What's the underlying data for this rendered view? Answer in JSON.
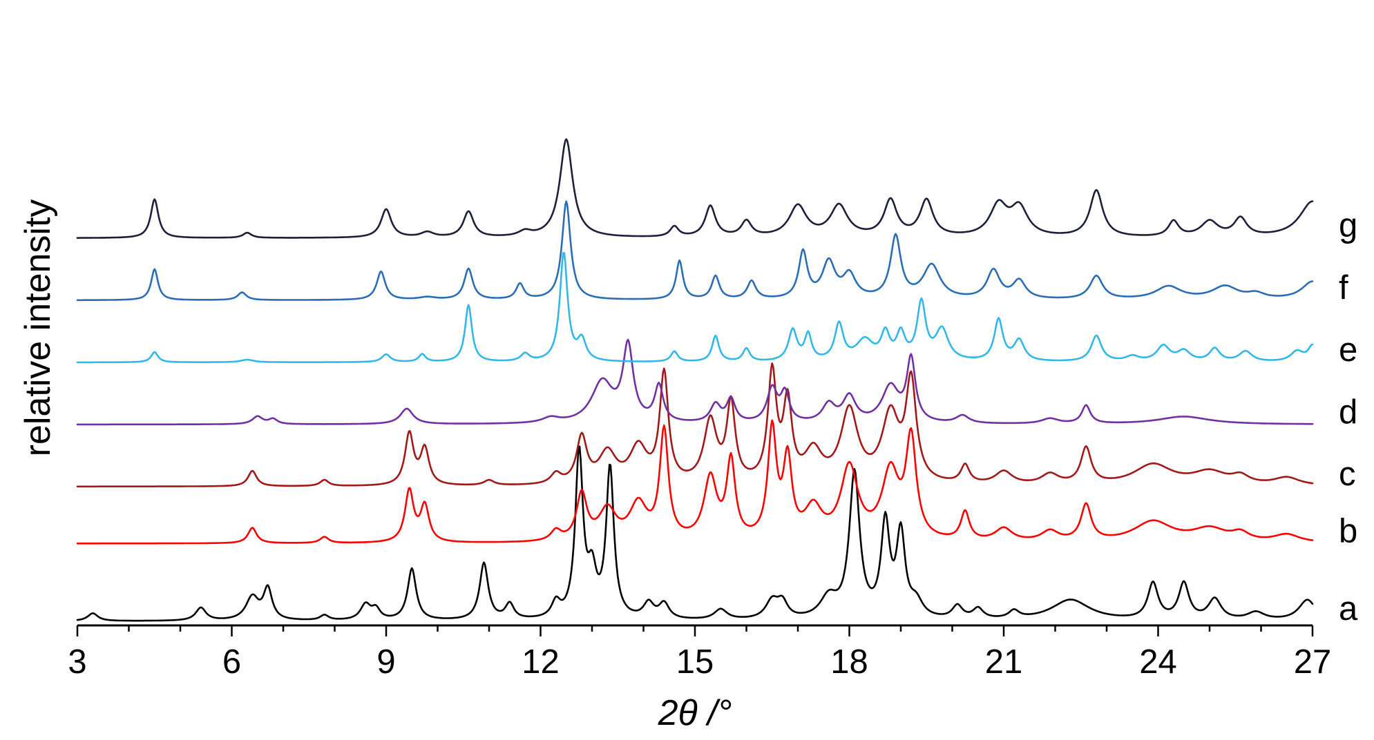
{
  "chart_data": {
    "type": "line",
    "title": "",
    "xlabel": "2θ /°",
    "ylabel": "relative intensity",
    "xlim": [
      3,
      27
    ],
    "xticks": [
      "3",
      "6",
      "9",
      "12",
      "15",
      "18",
      "21",
      "24",
      "27"
    ],
    "x_minor_step": 1,
    "y_ticks_shown": false,
    "grid": false,
    "legend": "none; each trace labeled at right end",
    "series": [
      {
        "name": "a",
        "color": "#000000",
        "offset": 0,
        "peaks": [
          [
            3.3,
            0.15,
            0.12
          ],
          [
            5.4,
            0.25,
            0.12
          ],
          [
            6.4,
            0.45,
            0.15
          ],
          [
            6.7,
            0.6,
            0.1
          ],
          [
            7.8,
            0.1,
            0.1
          ],
          [
            8.6,
            0.3,
            0.12
          ],
          [
            8.8,
            0.2,
            0.1
          ],
          [
            9.5,
            1.0,
            0.1
          ],
          [
            10.9,
            1.1,
            0.1
          ],
          [
            11.4,
            0.3,
            0.1
          ],
          [
            12.3,
            0.3,
            0.1
          ],
          [
            12.75,
            3.2,
            0.09
          ],
          [
            13.35,
            2.9,
            0.09
          ],
          [
            13.0,
            0.8,
            0.1
          ],
          [
            14.1,
            0.3,
            0.12
          ],
          [
            14.4,
            0.3,
            0.12
          ],
          [
            15.5,
            0.2,
            0.15
          ],
          [
            16.5,
            0.35,
            0.15
          ],
          [
            16.7,
            0.3,
            0.12
          ],
          [
            17.6,
            0.4,
            0.2
          ],
          [
            18.1,
            2.8,
            0.12
          ],
          [
            18.7,
            1.8,
            0.1
          ],
          [
            19.0,
            1.6,
            0.1
          ],
          [
            19.3,
            0.3,
            0.15
          ],
          [
            20.1,
            0.25,
            0.12
          ],
          [
            20.5,
            0.2,
            0.12
          ],
          [
            21.2,
            0.15,
            0.12
          ],
          [
            22.3,
            0.4,
            0.45
          ],
          [
            23.9,
            0.7,
            0.12
          ],
          [
            24.5,
            0.7,
            0.12
          ],
          [
            25.1,
            0.4,
            0.15
          ],
          [
            25.9,
            0.15,
            0.2
          ],
          [
            26.9,
            0.4,
            0.2
          ]
        ]
      },
      {
        "name": "b",
        "color": "#ff0000",
        "offset": 1.5,
        "peaks": [
          [
            6.4,
            0.3,
            0.1
          ],
          [
            7.8,
            0.12,
            0.1
          ],
          [
            9.45,
            1.0,
            0.1
          ],
          [
            9.75,
            0.7,
            0.1
          ],
          [
            12.3,
            0.2,
            0.12
          ],
          [
            12.8,
            0.9,
            0.12
          ],
          [
            13.3,
            0.6,
            0.2
          ],
          [
            13.9,
            0.7,
            0.2
          ],
          [
            14.4,
            2.1,
            0.1
          ],
          [
            15.3,
            1.2,
            0.15
          ],
          [
            15.7,
            1.5,
            0.1
          ],
          [
            16.5,
            2.1,
            0.1
          ],
          [
            16.8,
            1.5,
            0.1
          ],
          [
            17.3,
            0.6,
            0.2
          ],
          [
            18.0,
            1.4,
            0.2
          ],
          [
            18.8,
            1.3,
            0.2
          ],
          [
            19.2,
            1.9,
            0.12
          ],
          [
            20.25,
            0.55,
            0.1
          ],
          [
            21.0,
            0.25,
            0.2
          ],
          [
            21.9,
            0.2,
            0.2
          ],
          [
            22.6,
            0.7,
            0.12
          ],
          [
            23.9,
            0.4,
            0.45
          ],
          [
            25.0,
            0.25,
            0.4
          ],
          [
            25.6,
            0.15,
            0.2
          ],
          [
            26.5,
            0.15,
            0.3
          ]
        ]
      },
      {
        "name": "c",
        "color": "#a01818",
        "offset": 2.6,
        "peaks": [
          [
            6.4,
            0.3,
            0.1
          ],
          [
            7.8,
            0.12,
            0.1
          ],
          [
            9.45,
            1.0,
            0.1
          ],
          [
            9.75,
            0.7,
            0.1
          ],
          [
            11.0,
            0.1,
            0.12
          ],
          [
            12.3,
            0.2,
            0.12
          ],
          [
            12.8,
            0.9,
            0.12
          ],
          [
            13.3,
            0.6,
            0.2
          ],
          [
            13.9,
            0.7,
            0.2
          ],
          [
            14.4,
            2.1,
            0.1
          ],
          [
            15.3,
            1.2,
            0.15
          ],
          [
            15.7,
            1.5,
            0.1
          ],
          [
            16.5,
            2.1,
            0.1
          ],
          [
            16.8,
            1.5,
            0.1
          ],
          [
            17.3,
            0.6,
            0.2
          ],
          [
            18.0,
            1.4,
            0.2
          ],
          [
            18.8,
            1.3,
            0.2
          ],
          [
            19.2,
            1.9,
            0.12
          ],
          [
            20.25,
            0.35,
            0.1
          ],
          [
            21.0,
            0.25,
            0.2
          ],
          [
            21.9,
            0.2,
            0.2
          ],
          [
            22.6,
            0.7,
            0.12
          ],
          [
            23.9,
            0.4,
            0.45
          ],
          [
            25.0,
            0.25,
            0.4
          ],
          [
            25.6,
            0.15,
            0.2
          ],
          [
            26.5,
            0.15,
            0.3
          ]
        ]
      },
      {
        "name": "d",
        "color": "#7030a0",
        "offset": 3.8,
        "peaks": [
          [
            6.5,
            0.15,
            0.12
          ],
          [
            6.8,
            0.1,
            0.1
          ],
          [
            9.4,
            0.3,
            0.15
          ],
          [
            12.2,
            0.1,
            0.2
          ],
          [
            13.2,
            0.8,
            0.25
          ],
          [
            13.7,
            1.45,
            0.12
          ],
          [
            14.3,
            0.7,
            0.1
          ],
          [
            15.4,
            0.35,
            0.12
          ],
          [
            15.7,
            0.45,
            0.1
          ],
          [
            16.5,
            0.65,
            0.12
          ],
          [
            16.75,
            0.55,
            0.1
          ],
          [
            17.6,
            0.35,
            0.15
          ],
          [
            18.0,
            0.5,
            0.15
          ],
          [
            18.8,
            0.7,
            0.2
          ],
          [
            19.2,
            1.2,
            0.1
          ],
          [
            20.2,
            0.15,
            0.15
          ],
          [
            21.9,
            0.1,
            0.2
          ],
          [
            22.6,
            0.35,
            0.1
          ],
          [
            24.5,
            0.15,
            0.6
          ]
        ]
      },
      {
        "name": "e",
        "color": "#33b6e8",
        "offset": 5.0,
        "peaks": [
          [
            4.5,
            0.2,
            0.08
          ],
          [
            6.3,
            0.05,
            0.15
          ],
          [
            9.0,
            0.15,
            0.1
          ],
          [
            9.7,
            0.15,
            0.08
          ],
          [
            10.6,
            1.1,
            0.08
          ],
          [
            11.7,
            0.15,
            0.1
          ],
          [
            12.45,
            2.1,
            0.09
          ],
          [
            12.8,
            0.4,
            0.1
          ],
          [
            14.6,
            0.2,
            0.08
          ],
          [
            15.4,
            0.5,
            0.08
          ],
          [
            16.0,
            0.25,
            0.08
          ],
          [
            16.9,
            0.6,
            0.1
          ],
          [
            17.2,
            0.5,
            0.08
          ],
          [
            17.8,
            0.7,
            0.1
          ],
          [
            18.3,
            0.4,
            0.2
          ],
          [
            18.7,
            0.5,
            0.1
          ],
          [
            19.0,
            0.5,
            0.1
          ],
          [
            19.4,
            1.1,
            0.1
          ],
          [
            19.8,
            0.6,
            0.15
          ],
          [
            20.9,
            0.8,
            0.1
          ],
          [
            21.3,
            0.4,
            0.12
          ],
          [
            22.8,
            0.5,
            0.12
          ],
          [
            23.5,
            0.1,
            0.15
          ],
          [
            24.1,
            0.3,
            0.15
          ],
          [
            24.5,
            0.2,
            0.15
          ],
          [
            25.1,
            0.25,
            0.12
          ],
          [
            25.7,
            0.2,
            0.15
          ],
          [
            26.7,
            0.2,
            0.15
          ],
          [
            27.0,
            0.3,
            0.1
          ]
        ]
      },
      {
        "name": "f",
        "color": "#2a6db3",
        "offset": 6.2,
        "peaks": [
          [
            4.5,
            0.6,
            0.08
          ],
          [
            6.2,
            0.15,
            0.1
          ],
          [
            8.9,
            0.55,
            0.1
          ],
          [
            9.8,
            0.05,
            0.2
          ],
          [
            10.6,
            0.6,
            0.1
          ],
          [
            11.6,
            0.3,
            0.09
          ],
          [
            12.5,
            1.9,
            0.1
          ],
          [
            14.7,
            0.75,
            0.08
          ],
          [
            15.4,
            0.45,
            0.09
          ],
          [
            16.1,
            0.35,
            0.1
          ],
          [
            17.1,
            0.9,
            0.1
          ],
          [
            17.6,
            0.7,
            0.15
          ],
          [
            18.0,
            0.45,
            0.15
          ],
          [
            18.9,
            1.2,
            0.12
          ],
          [
            19.6,
            0.65,
            0.2
          ],
          [
            20.8,
            0.55,
            0.15
          ],
          [
            21.3,
            0.35,
            0.15
          ],
          [
            22.8,
            0.45,
            0.15
          ],
          [
            24.2,
            0.25,
            0.3
          ],
          [
            25.3,
            0.25,
            0.3
          ],
          [
            25.9,
            0.1,
            0.2
          ],
          [
            27.0,
            0.35,
            0.25
          ]
        ]
      },
      {
        "name": "g",
        "color": "#1c1f3a",
        "offset": 7.4,
        "peaks": [
          [
            4.5,
            0.75,
            0.09
          ],
          [
            6.3,
            0.1,
            0.1
          ],
          [
            9.0,
            0.55,
            0.12
          ],
          [
            9.8,
            0.1,
            0.15
          ],
          [
            10.6,
            0.5,
            0.12
          ],
          [
            11.7,
            0.1,
            0.15
          ],
          [
            12.5,
            1.9,
            0.15
          ],
          [
            14.6,
            0.2,
            0.1
          ],
          [
            15.3,
            0.6,
            0.12
          ],
          [
            16.0,
            0.3,
            0.12
          ],
          [
            17.0,
            0.6,
            0.2
          ],
          [
            17.8,
            0.6,
            0.2
          ],
          [
            18.8,
            0.7,
            0.15
          ],
          [
            19.5,
            0.7,
            0.15
          ],
          [
            20.9,
            0.6,
            0.2
          ],
          [
            21.3,
            0.55,
            0.2
          ],
          [
            22.8,
            0.9,
            0.15
          ],
          [
            24.3,
            0.3,
            0.12
          ],
          [
            25.0,
            0.3,
            0.2
          ],
          [
            25.6,
            0.35,
            0.15
          ],
          [
            27.0,
            0.7,
            0.3
          ]
        ]
      }
    ]
  }
}
